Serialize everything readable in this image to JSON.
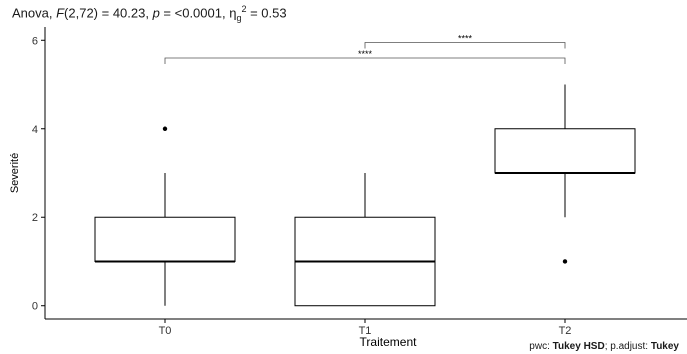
{
  "subtitle": {
    "prefix": "Anova, ",
    "stat_name": "F",
    "stat_args": "(2,72) = 40.23, ",
    "p_name": "p",
    "p_value": " = <0.0001, ",
    "eff_base": "η",
    "eff_sub": "g",
    "eff_sup": "2",
    "eff_value": " = 0.53"
  },
  "caption": {
    "pwc_label": "pwc: ",
    "pwc_method": "Tukey HSD",
    "sep": "; p.adjust: ",
    "adjust_method": "Tukey"
  },
  "chart_data": {
    "type": "boxplot",
    "title": "",
    "xlabel": "Traitement",
    "ylabel": "Severité",
    "ylim": [
      -0.3,
      6.3
    ],
    "yticks": [
      0,
      2,
      4,
      6
    ],
    "grid": false,
    "categories": [
      "T0",
      "T1",
      "T2"
    ],
    "boxes": [
      {
        "name": "T0",
        "whisker_low": 0,
        "q1": 1,
        "median": 1,
        "q3": 2,
        "whisker_high": 3,
        "outliers": [
          4
        ]
      },
      {
        "name": "T1",
        "whisker_low": 0,
        "q1": 0,
        "median": 1,
        "q3": 2,
        "whisker_high": 3,
        "outliers": []
      },
      {
        "name": "T2",
        "whisker_low": 2,
        "q1": 3,
        "median": 3,
        "q3": 4,
        "whisker_high": 5,
        "outliers": [
          1
        ]
      }
    ],
    "comparisons": [
      {
        "from": "T1",
        "to": "T2",
        "y": 5.95,
        "label": "****"
      },
      {
        "from": "T0",
        "to": "T2",
        "y": 5.6,
        "label": "****"
      }
    ]
  }
}
